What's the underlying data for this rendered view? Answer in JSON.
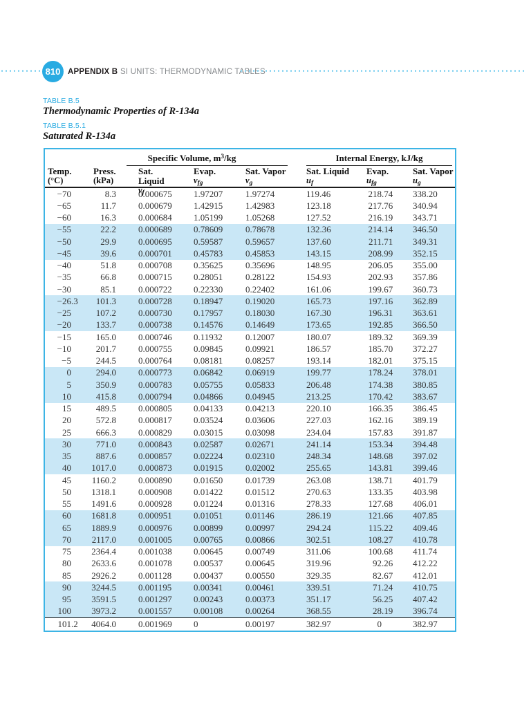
{
  "header": {
    "page_number": "810",
    "appendix_label": "APPENDIX B",
    "section_label": "SI UNITS: THERMODYNAMIC TABLES"
  },
  "labels": {
    "table_label": "TABLE B.5",
    "table_title": "Thermodynamic Properties of R-134a",
    "subtable_label": "TABLE B.5.1",
    "subtable_title": "Saturated R-134a"
  },
  "colors": {
    "accent_cyan": "#29abe2",
    "table_border": "#3cb4e5",
    "row_highlight": "#c9e7f6",
    "dotted_rule": "#96d9f3",
    "gray_text": "#85888b"
  },
  "table": {
    "group_headers": [
      {
        "pre": "Specific Volume, m",
        "sup": "3",
        "post": "/kg"
      },
      {
        "pre": "Internal Energy, kJ/kg",
        "sup": "",
        "post": ""
      }
    ],
    "columns": [
      {
        "line1": "Temp.",
        "line2": "(°C)"
      },
      {
        "line1": "Press.",
        "line2": "(kPa)"
      },
      {
        "line1": "Sat. Liquid",
        "sym": "v",
        "sub": "f"
      },
      {
        "line1": "Evap.",
        "sym": "v",
        "sub": "fg"
      },
      {
        "line1": "Sat. Vapor",
        "sym": "v",
        "sub": "g"
      },
      {
        "line1": "Sat. Liquid",
        "sym": "u",
        "sub": "f"
      },
      {
        "line1": "Evap.",
        "sym": "u",
        "sub": "fg"
      },
      {
        "line1": "Sat. Vapor",
        "sym": "u",
        "sub": "g"
      }
    ],
    "rows": [
      [
        "−70",
        "8.3",
        "0.000675",
        "1.97207",
        "1.97274",
        "119.46",
        "218.74",
        "338.20"
      ],
      [
        "−65",
        "11.7",
        "0.000679",
        "1.42915",
        "1.42983",
        "123.18",
        "217.76",
        "340.94"
      ],
      [
        "−60",
        "16.3",
        "0.000684",
        "1.05199",
        "1.05268",
        "127.52",
        "216.19",
        "343.71"
      ],
      [
        "−55",
        "22.2",
        "0.000689",
        "0.78609",
        "0.78678",
        "132.36",
        "214.14",
        "346.50"
      ],
      [
        "−50",
        "29.9",
        "0.000695",
        "0.59587",
        "0.59657",
        "137.60",
        "211.71",
        "349.31"
      ],
      [
        "−45",
        "39.6",
        "0.000701",
        "0.45783",
        "0.45853",
        "143.15",
        "208.99",
        "352.15"
      ],
      [
        "−40",
        "51.8",
        "0.000708",
        "0.35625",
        "0.35696",
        "148.95",
        "206.05",
        "355.00"
      ],
      [
        "−35",
        "66.8",
        "0.000715",
        "0.28051",
        "0.28122",
        "154.93",
        "202.93",
        "357.86"
      ],
      [
        "−30",
        "85.1",
        "0.000722",
        "0.22330",
        "0.22402",
        "161.06",
        "199.67",
        "360.73"
      ],
      [
        "−26.3",
        "101.3",
        "0.000728",
        "0.18947",
        "0.19020",
        "165.73",
        "197.16",
        "362.89"
      ],
      [
        "−25",
        "107.2",
        "0.000730",
        "0.17957",
        "0.18030",
        "167.30",
        "196.31",
        "363.61"
      ],
      [
        "−20",
        "133.7",
        "0.000738",
        "0.14576",
        "0.14649",
        "173.65",
        "192.85",
        "366.50"
      ],
      [
        "−15",
        "165.0",
        "0.000746",
        "0.11932",
        "0.12007",
        "180.07",
        "189.32",
        "369.39"
      ],
      [
        "−10",
        "201.7",
        "0.000755",
        "0.09845",
        "0.09921",
        "186.57",
        "185.70",
        "372.27"
      ],
      [
        "−5",
        "244.5",
        "0.000764",
        "0.08181",
        "0.08257",
        "193.14",
        "182.01",
        "375.15"
      ],
      [
        "0",
        "294.0",
        "0.000773",
        "0.06842",
        "0.06919",
        "199.77",
        "178.24",
        "378.01"
      ],
      [
        "5",
        "350.9",
        "0.000783",
        "0.05755",
        "0.05833",
        "206.48",
        "174.38",
        "380.85"
      ],
      [
        "10",
        "415.8",
        "0.000794",
        "0.04866",
        "0.04945",
        "213.25",
        "170.42",
        "383.67"
      ],
      [
        "15",
        "489.5",
        "0.000805",
        "0.04133",
        "0.04213",
        "220.10",
        "166.35",
        "386.45"
      ],
      [
        "20",
        "572.8",
        "0.000817",
        "0.03524",
        "0.03606",
        "227.03",
        "162.16",
        "389.19"
      ],
      [
        "25",
        "666.3",
        "0.000829",
        "0.03015",
        "0.03098",
        "234.04",
        "157.83",
        "391.87"
      ],
      [
        "30",
        "771.0",
        "0.000843",
        "0.02587",
        "0.02671",
        "241.14",
        "153.34",
        "394.48"
      ],
      [
        "35",
        "887.6",
        "0.000857",
        "0.02224",
        "0.02310",
        "248.34",
        "148.68",
        "397.02"
      ],
      [
        "40",
        "1017.0",
        "0.000873",
        "0.01915",
        "0.02002",
        "255.65",
        "143.81",
        "399.46"
      ],
      [
        "45",
        "1160.2",
        "0.000890",
        "0.01650",
        "0.01739",
        "263.08",
        "138.71",
        "401.79"
      ],
      [
        "50",
        "1318.1",
        "0.000908",
        "0.01422",
        "0.01512",
        "270.63",
        "133.35",
        "403.98"
      ],
      [
        "55",
        "1491.6",
        "0.000928",
        "0.01224",
        "0.01316",
        "278.33",
        "127.68",
        "406.01"
      ],
      [
        "60",
        "1681.8",
        "0.000951",
        "0.01051",
        "0.01146",
        "286.19",
        "121.66",
        "407.85"
      ],
      [
        "65",
        "1889.9",
        "0.000976",
        "0.00899",
        "0.00997",
        "294.24",
        "115.22",
        "409.46"
      ],
      [
        "70",
        "2117.0",
        "0.001005",
        "0.00765",
        "0.00866",
        "302.51",
        "108.27",
        "410.78"
      ],
      [
        "75",
        "2364.4",
        "0.001038",
        "0.00645",
        "0.00749",
        "311.06",
        "100.68",
        "411.74"
      ],
      [
        "80",
        "2633.6",
        "0.001078",
        "0.00537",
        "0.00645",
        "319.96",
        "92.26",
        "412.22"
      ],
      [
        "85",
        "2926.2",
        "0.001128",
        "0.00437",
        "0.00550",
        "329.35",
        "82.67",
        "412.01"
      ],
      [
        "90",
        "3244.5",
        "0.001195",
        "0.00341",
        "0.00461",
        "339.51",
        "71.24",
        "410.75"
      ],
      [
        "95",
        "3591.5",
        "0.001297",
        "0.00243",
        "0.00373",
        "351.17",
        "56.25",
        "407.42"
      ],
      [
        "100",
        "3973.2",
        "0.001557",
        "0.00108",
        "0.00264",
        "368.55",
        "28.19",
        "396.74"
      ],
      [
        "101.2",
        "4064.0",
        "0.001969",
        "0",
        "0.00197",
        "382.97",
        "0",
        "382.97"
      ]
    ]
  }
}
